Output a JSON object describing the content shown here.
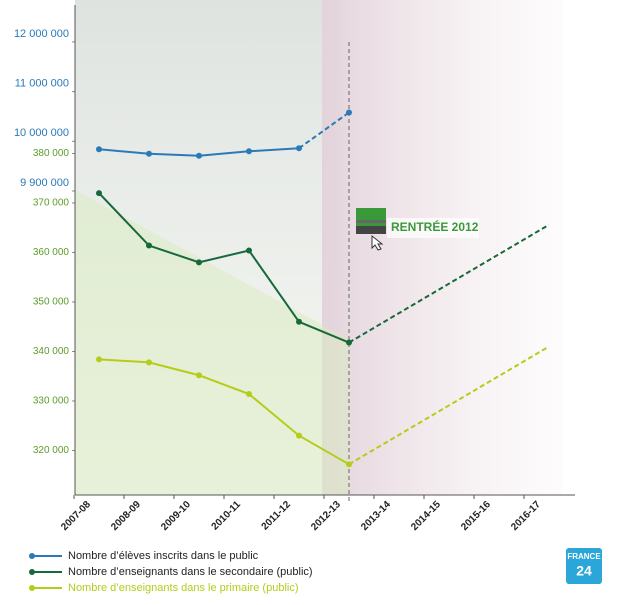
{
  "chart_data": {
    "type": "line",
    "categories": [
      "2007-08",
      "2008-09",
      "2009-10",
      "2010-11",
      "2011-12",
      "2012-13",
      "2013-14",
      "2014-15",
      "2015-16",
      "2016-17"
    ],
    "series": [
      {
        "name": "Nombre d’élèves inscrits dans le public",
        "color": "#2a7ab8",
        "axis": "y2",
        "solid_until": 4,
        "values": [
          9984000,
          9975000,
          9971000,
          9980000,
          9986000,
          10580000,
          null,
          null,
          null,
          null
        ]
      },
      {
        "name": "Nombre d’enseignants dans le secondaire (public)",
        "color": "#17693a",
        "solid_until": 5,
        "values": [
          372000,
          361400,
          358000,
          360400,
          346000,
          341800,
          null,
          null,
          null,
          365600
        ]
      },
      {
        "name": "Nombre d’enseignants dans le primaire (public)",
        "color": "#b5cc18",
        "solid_until": 5,
        "values": [
          338400,
          337800,
          335200,
          331400,
          323000,
          317200,
          null,
          null,
          null,
          341000
        ]
      }
    ],
    "ylim": [
      311000,
      410000
    ],
    "yticks": [
      {
        "value": 320000,
        "label": "320 000"
      },
      {
        "value": 330000,
        "label": "330 000"
      },
      {
        "value": 340000,
        "label": "340 000"
      },
      {
        "value": 350000,
        "label": "350 000"
      },
      {
        "value": 360000,
        "label": "360 000"
      },
      {
        "value": 370000,
        "label": "370 000"
      },
      {
        "value": 380000,
        "label": "380 000"
      }
    ],
    "y2lim": [
      9900000,
      12000000
    ],
    "y2ticks": [
      {
        "value": 9900000,
        "label": "9 900 000"
      },
      {
        "value": 10000000,
        "label": "10 000 000"
      },
      {
        "value": 11000000,
        "label": "11 000 000"
      },
      {
        "value": 12000000,
        "label": "12 000 000"
      }
    ],
    "annotation": "RENTRÉE 2012",
    "logo": [
      "FRANCE",
      "24"
    ]
  }
}
